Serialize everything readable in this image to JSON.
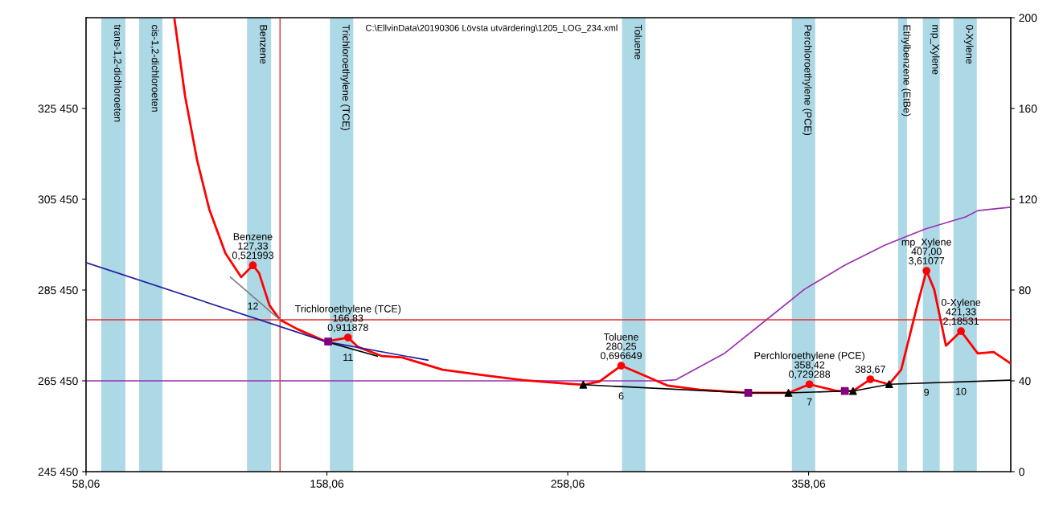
{
  "chart_data": {
    "type": "line",
    "title": "C:\\EllvinData\\20190306 Lövsta utvärdering\\1205_LOG_234.xml",
    "xlim": [
      58.06,
      442
    ],
    "xticks": [
      {
        "value": 58.06,
        "label": "58,06"
      },
      {
        "value": 158.06,
        "label": "158,06"
      },
      {
        "value": 258.06,
        "label": "258,06"
      },
      {
        "value": 358.06,
        "label": "358,06"
      }
    ],
    "ylim": [
      245450,
      345450
    ],
    "yticks": [
      {
        "value": 245450,
        "label": "245 450"
      },
      {
        "value": 265450,
        "label": "265 450"
      },
      {
        "value": 285450,
        "label": "285 450"
      },
      {
        "value": 305450,
        "label": "305 450"
      },
      {
        "value": 325450,
        "label": "325 450"
      }
    ],
    "y2lim": [
      0,
      200
    ],
    "y2ticks": [
      0,
      40,
      80,
      120,
      160,
      200
    ],
    "grid": false,
    "legend": false,
    "series": [
      {
        "color": "#ff0000",
        "x": [
          94.8,
          99.2,
          104.2,
          109.2,
          115.9,
          122.5,
          127.33,
          129.9,
          134.2,
          138.6,
          146.0,
          157.6,
          166.83,
          171.0,
          181.0,
          189.4,
          206.1,
          222.8,
          239.5,
          256.2,
          264.5,
          271.2,
          280.25,
          289.6,
          299.6,
          313.0,
          333.0,
          349.7,
          358.42,
          369.8,
          376.5,
          383.67,
          391.5,
          396.5,
          403.2,
          407.0,
          410.2,
          415.1,
          421.33,
          428.3,
          434.9,
          441.6
        ],
        "values": [
          345000,
          328100,
          314000,
          303300,
          293600,
          288300,
          290900,
          289200,
          282100,
          278900,
          276800,
          274100,
          275000,
          272900,
          270900,
          270600,
          267900,
          266700,
          265600,
          264900,
          264600,
          265300,
          268800,
          266700,
          264400,
          263500,
          262800,
          262800,
          264700,
          263200,
          263200,
          265800,
          264700,
          267900,
          282100,
          289700,
          285600,
          273200,
          276400,
          271500,
          271800,
          269400
        ]
      },
      {
        "color": "#1f1f9f",
        "x": [
          58.06,
          157.6,
          200.0
        ],
        "values": [
          291500,
          274100,
          270000
        ]
      },
      {
        "color": "#808080",
        "x": [
          118.0,
          138.6
        ],
        "values": [
          288300,
          278900
        ]
      },
      {
        "color": "#000000",
        "x": [
          157.6,
          179.0
        ],
        "values": [
          274100,
          270900
        ]
      },
      {
        "color": "#000000",
        "x": [
          264.5,
          333.0,
          349.7,
          373.1,
          376.5,
          391.5,
          442.0
        ],
        "values": [
          264600,
          262800,
          262800,
          263200,
          263200,
          264700,
          265600
        ]
      },
      {
        "color": "#9b30b0",
        "axis": "y2",
        "x": [
          58.06,
          296.3,
          303.0,
          323.0,
          339.7,
          356.4,
          373.1,
          389.8,
          406.5,
          423.2,
          428.3,
          441.6
        ],
        "values": [
          40,
          40,
          40.5,
          52.0,
          66.2,
          80.4,
          91.0,
          99.8,
          106.9,
          112.2,
          115.0,
          116.5
        ]
      },
      {
        "type": "scatter",
        "marker": "circle",
        "color": "#ff0000",
        "x": [
          127.33,
          166.83,
          280.25,
          358.42,
          383.67,
          407.0,
          421.33
        ],
        "values": [
          290900,
          275000,
          268800,
          264700,
          265800,
          289700,
          276400
        ]
      },
      {
        "type": "scatter",
        "marker": "triangle",
        "color": "#000000",
        "x": [
          264.5,
          349.7,
          376.5,
          391.5
        ],
        "values": [
          264600,
          262800,
          263200,
          264700
        ]
      },
      {
        "type": "scatter",
        "marker": "square",
        "color": "#800080",
        "x": [
          158.6,
          333.0,
          373.1
        ],
        "values": [
          274100,
          262800,
          263200
        ]
      }
    ],
    "ref_lines": [
      {
        "axis": "x",
        "value": 138.6,
        "color": "#e03030"
      },
      {
        "axis": "y",
        "value": 278900,
        "color": "#e03030"
      }
    ],
    "bands": [
      {
        "axis": "x",
        "from": 64.4,
        "to": 74.4,
        "label": "trans-1,2-dichloroeten",
        "color": "#add8e6"
      },
      {
        "axis": "x",
        "from": 80.1,
        "to": 89.8,
        "label": "cis-1,2-dichloroeten",
        "color": "#add8e6"
      },
      {
        "axis": "x",
        "from": 124.9,
        "to": 134.9,
        "label": "Benzene",
        "color": "#add8e6"
      },
      {
        "axis": "x",
        "from": 159.3,
        "to": 169.0,
        "label": "Trichloroethylene (TCE)",
        "color": "#add8e6"
      },
      {
        "axis": "x",
        "from": 280.6,
        "to": 290.3,
        "label": "Toluene",
        "color": "#add8e6"
      },
      {
        "axis": "x",
        "from": 351.1,
        "to": 360.8,
        "label": "Perchloroethylene (PCE)",
        "color": "#add8e6"
      },
      {
        "axis": "x",
        "from": 395.2,
        "to": 398.9,
        "label": "Ethylbenzene (EtBe)",
        "color": "#add8e6"
      },
      {
        "axis": "x",
        "from": 405.5,
        "to": 412.5,
        "label": "mp_Xylene",
        "color": "#add8e6"
      },
      {
        "axis": "x",
        "from": 418.2,
        "to": 427.9,
        "label": "0-Xylene",
        "color": "#add8e6"
      }
    ],
    "annotations": [
      {
        "text": "Benzene\n127,33\n0,521993",
        "x": 127.33,
        "y": 290900
      },
      {
        "text": "Trichloroethylene (TCE)\n166,83\n0,911878",
        "x": 166.83,
        "y": 275000
      },
      {
        "text": "Toluene\n280,25\n0,696649",
        "x": 280.25,
        "y": 268800
      },
      {
        "text": "Perchloroethylene (PCE)\n358,42\n0,729288",
        "x": 358.42,
        "y": 264700
      },
      {
        "text": "383,67",
        "x": 383.67,
        "y": 265800
      },
      {
        "text": "mp_Xylene\n407,00\n3,61077",
        "x": 407.0,
        "y": 289700
      },
      {
        "text": "0-Xylene\n421,33\n2,18531",
        "x": 421.33,
        "y": 276400
      },
      {
        "text": "12",
        "x": 127.33,
        "y": 284000
      },
      {
        "text": "11",
        "x": 166.83,
        "y": 272700
      },
      {
        "text": "6",
        "x": 280.25,
        "y": 264200
      },
      {
        "text": "7",
        "x": 358.42,
        "y": 262900
      },
      {
        "text": "9",
        "x": 407.0,
        "y": 265000
      },
      {
        "text": "10",
        "x": 421.33,
        "y": 265200
      }
    ]
  }
}
